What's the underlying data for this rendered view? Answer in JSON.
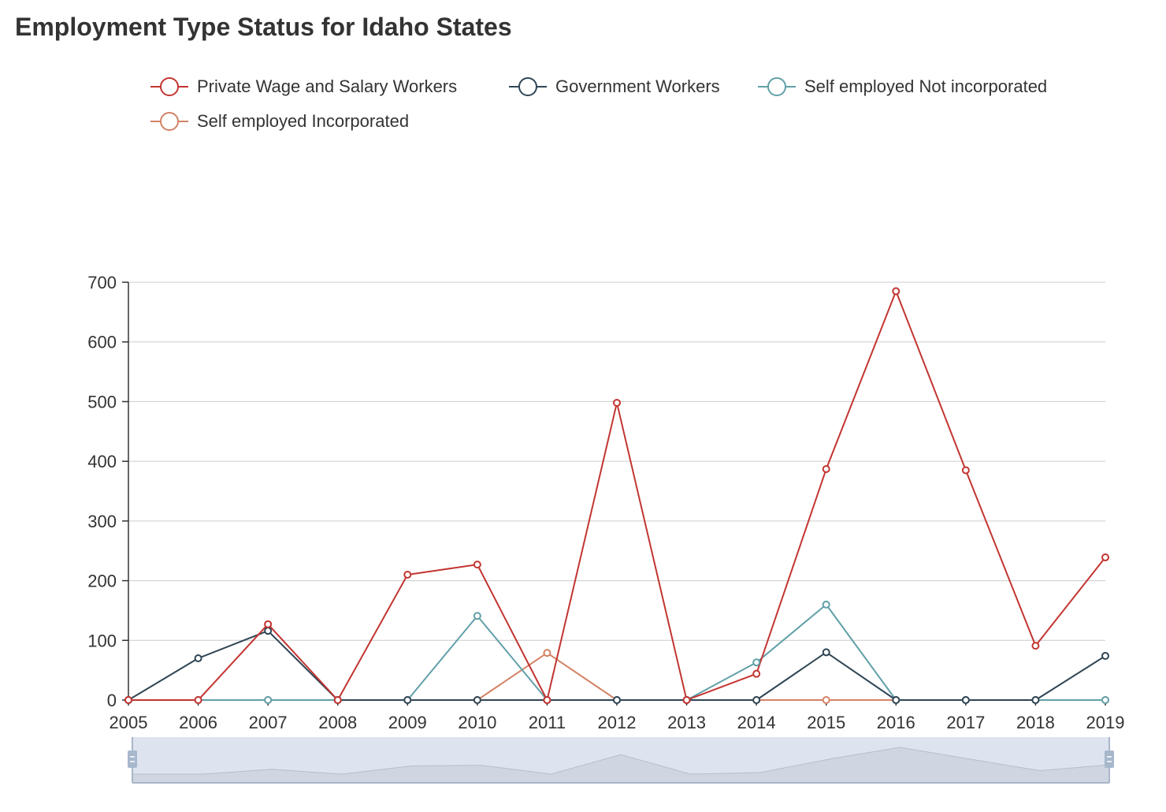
{
  "chart_data": {
    "type": "line",
    "title": "Employment Type Status for Idaho States",
    "categories": [
      "2005",
      "2006",
      "2007",
      "2008",
      "2009",
      "2010",
      "2011",
      "2012",
      "2013",
      "2014",
      "2015",
      "2016",
      "2017",
      "2018",
      "2019"
    ],
    "ylim": [
      0,
      700
    ],
    "yticks": [
      "0",
      "100",
      "200",
      "300",
      "400",
      "500",
      "600",
      "700"
    ],
    "grid": true,
    "legend_position": "top",
    "series": [
      {
        "name": "Private Wage and Salary Workers",
        "color": "#c23531",
        "values": [
          0,
          0,
          127,
          0,
          210,
          227,
          0,
          498,
          0,
          44,
          387,
          685,
          385,
          91,
          239
        ]
      },
      {
        "name": "Government Workers",
        "color": "#2f4554",
        "values": [
          0,
          70,
          116,
          0,
          0,
          0,
          0,
          0,
          0,
          0,
          80,
          0,
          0,
          0,
          74
        ]
      },
      {
        "name": "Self employed Not incorporated",
        "color": "#61a0a8",
        "values": [
          0,
          0,
          0,
          0,
          0,
          141,
          0,
          0,
          0,
          63,
          160,
          0,
          0,
          0,
          0
        ]
      },
      {
        "name": "Self employed Incorporated",
        "color": "#d48265",
        "values": [
          0,
          0,
          0,
          0,
          0,
          0,
          79,
          0,
          0,
          0,
          0,
          0,
          0,
          0,
          0
        ]
      }
    ],
    "data_zoom": {
      "start": 0,
      "end": 100,
      "fill": "#dde4ef",
      "border": "#aab6c8",
      "handle": "#a7b7cc"
    }
  }
}
